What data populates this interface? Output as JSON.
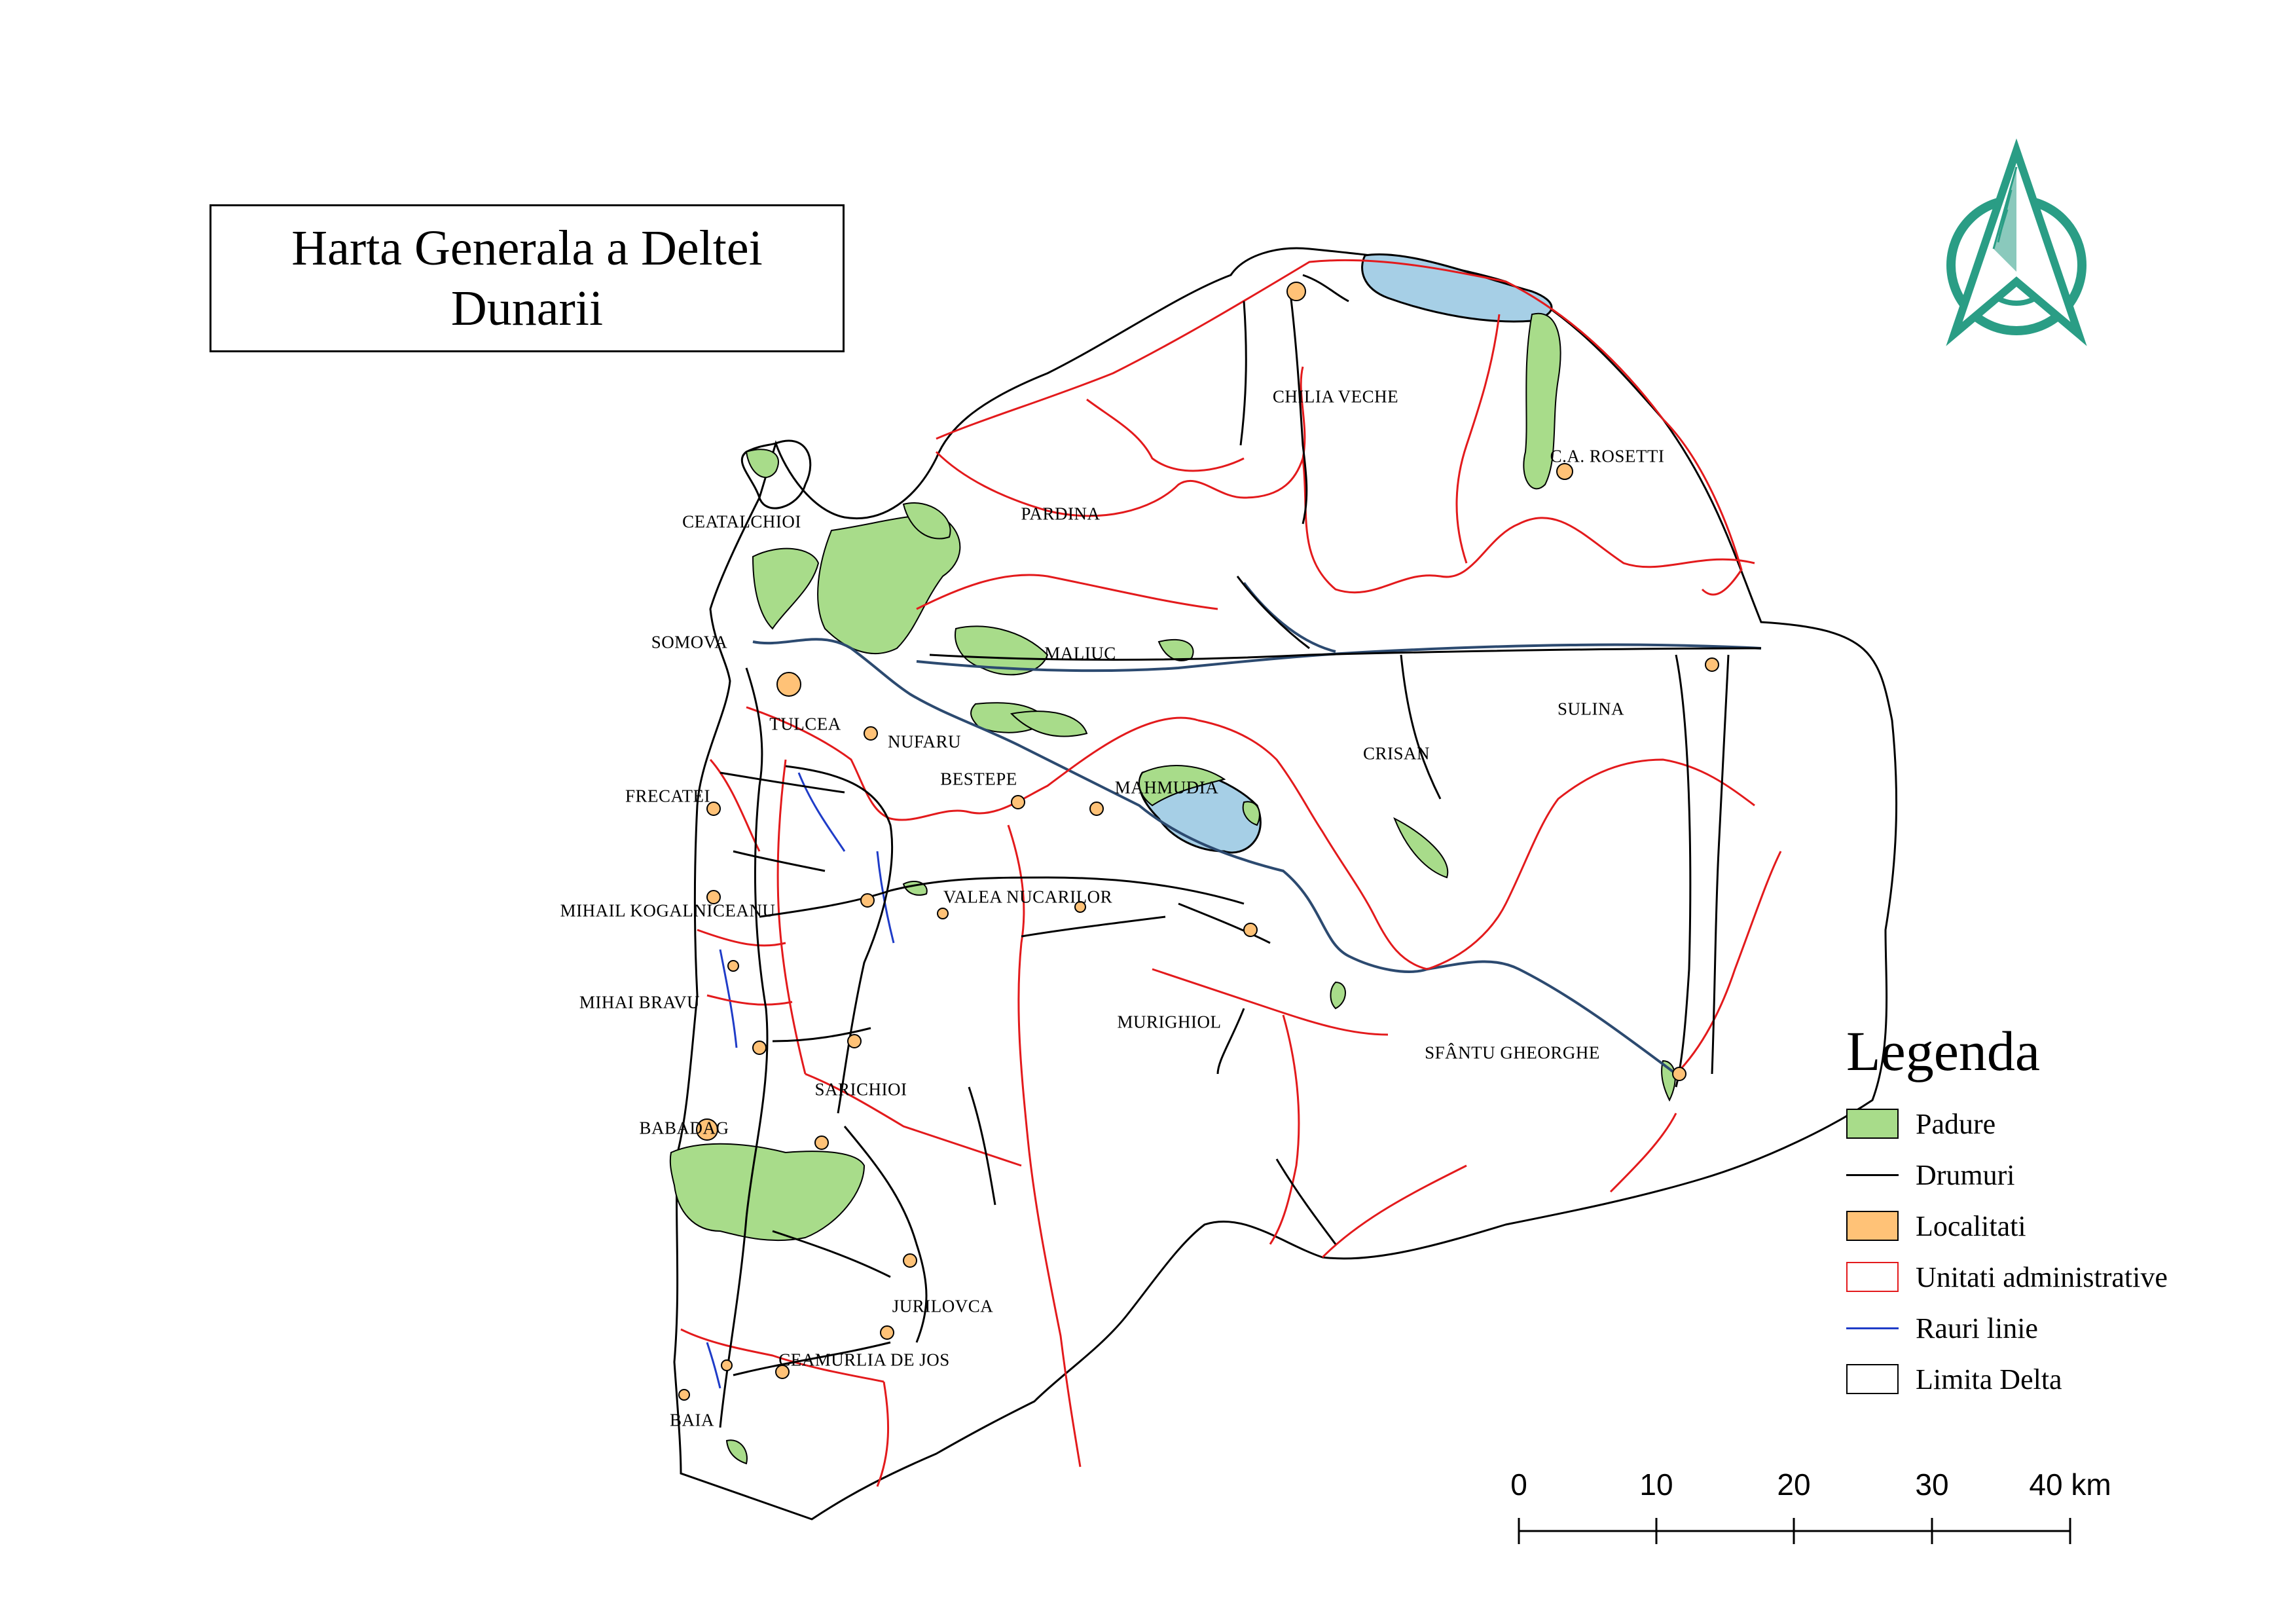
{
  "title": {
    "line1": "Harta Generala a Deltei",
    "line2": "Dunarii"
  },
  "map_labels": [
    {
      "name": "CHILIA VECHE"
    },
    {
      "name": "PARDINA"
    },
    {
      "name": "CEATALCHIOI"
    },
    {
      "name": "SOMOVA"
    },
    {
      "name": "MALIUC"
    },
    {
      "name": "TULCEA"
    },
    {
      "name": "NUFARU"
    },
    {
      "name": "BESTEPE"
    },
    {
      "name": "MAHMUDIA"
    },
    {
      "name": "CRISAN"
    },
    {
      "name": "SULINA"
    },
    {
      "name": "FRECATEI"
    },
    {
      "name": "MIHAIL KOGALNICEANU"
    },
    {
      "name": "VALEA NUCARILOR"
    },
    {
      "name": "MIHAI BRAVU"
    },
    {
      "name": "MURIGHIOL"
    },
    {
      "name": "SFÂNTU GHEORGHE"
    },
    {
      "name": "SARICHIOI"
    },
    {
      "name": "BABADAG"
    },
    {
      "name": "JURILOVCA"
    },
    {
      "name": "CEAMURLIA DE JOS"
    },
    {
      "name": "BAIA"
    },
    {
      "name": "C.A. ROSETTI"
    }
  ],
  "legend": {
    "title": "Legenda",
    "items": [
      {
        "label": "Padure",
        "kind": "fill",
        "fill": "#a8dc8a"
      },
      {
        "label": "Drumuri",
        "kind": "line",
        "stroke": "#000000"
      },
      {
        "label": "Localitati",
        "kind": "fill",
        "fill": "#ffc277"
      },
      {
        "label": "Unitati administrative",
        "kind": "fill-outline",
        "stroke": "#e31a1c"
      },
      {
        "label": "Rauri linie",
        "kind": "line",
        "stroke": "#1f3cc8"
      },
      {
        "label": "Limita Delta",
        "kind": "fill-outline",
        "stroke": "#000000"
      }
    ]
  },
  "scale_bar": {
    "ticks": [
      "0",
      "10",
      "20",
      "30"
    ],
    "last_tick": "40",
    "unit": "km"
  },
  "north_arrow": {
    "icon": "north-arrow-icon",
    "color": "#2a9d85"
  },
  "colors": {
    "forest": "#a8dc8a",
    "water": "#a6cfe6",
    "admin": "#e31a1c",
    "road": "#000000",
    "river": "#1f3cc8",
    "settlement": "#ffc277"
  }
}
